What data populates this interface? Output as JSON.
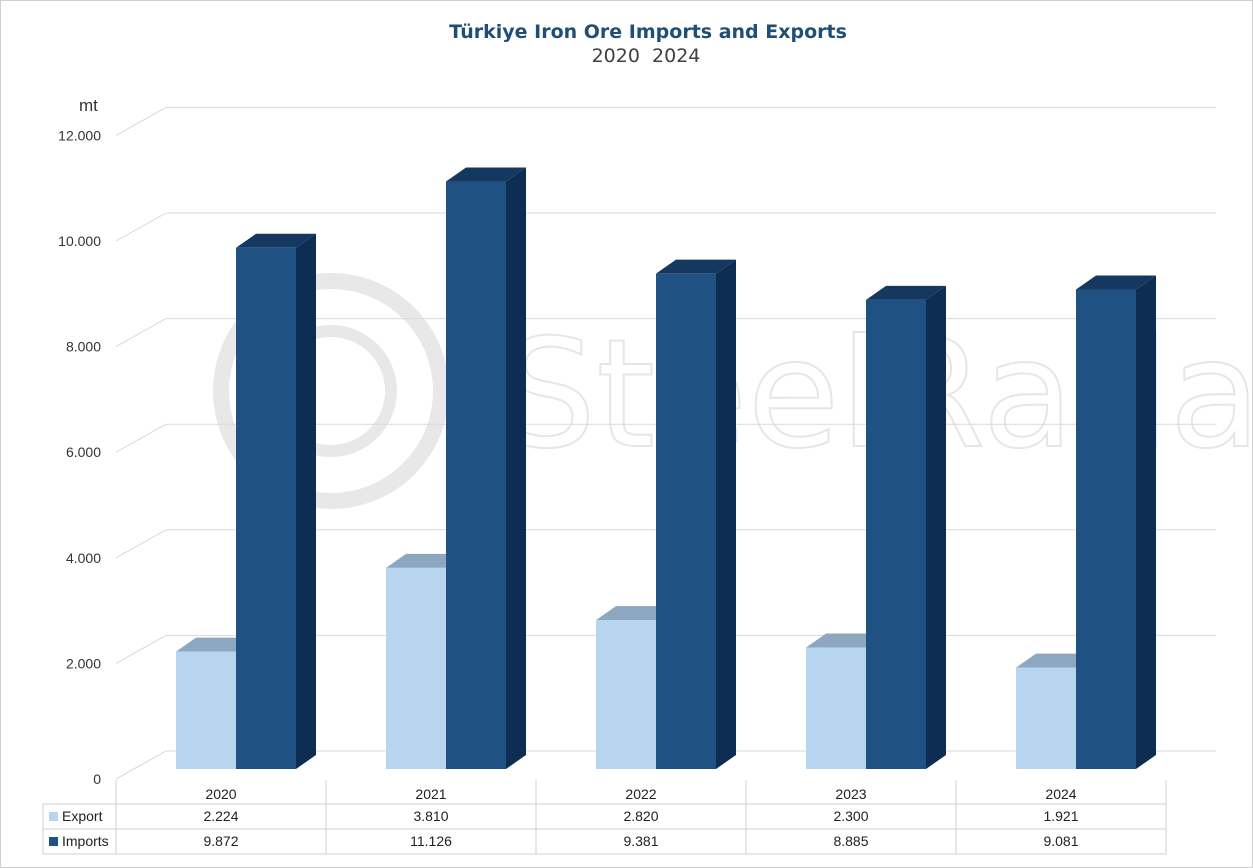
{
  "chart_data": {
    "type": "bar",
    "title": "Türkiye Iron Ore Imports and Exports",
    "subtitle": "2020  2024",
    "ylabel": "mt",
    "ylim": [
      0,
      12000
    ],
    "yticks": [
      0,
      2000,
      4000,
      6000,
      8000,
      10000,
      12000
    ],
    "ytick_labels": [
      "0",
      "2.000",
      "4.000",
      "6.000",
      "8.000",
      "10.000",
      "12.000"
    ],
    "categories": [
      "2020",
      "2021",
      "2022",
      "2023",
      "2024"
    ],
    "series": [
      {
        "name": "Export",
        "color": "#b7d5ef",
        "values": [
          2224,
          3810,
          2820,
          2300,
          1921
        ],
        "labels": [
          "2.224",
          "3.810",
          "2.820",
          "2.300",
          "1.921"
        ]
      },
      {
        "name": "Imports",
        "color": "#1f5183",
        "values": [
          9872,
          11126,
          9381,
          8885,
          9081
        ],
        "labels": [
          "9.872",
          "11.126",
          "9.381",
          "8.885",
          "9.081"
        ]
      }
    ],
    "legend": "data-table",
    "grid": true,
    "watermark": "SteelRadar"
  }
}
